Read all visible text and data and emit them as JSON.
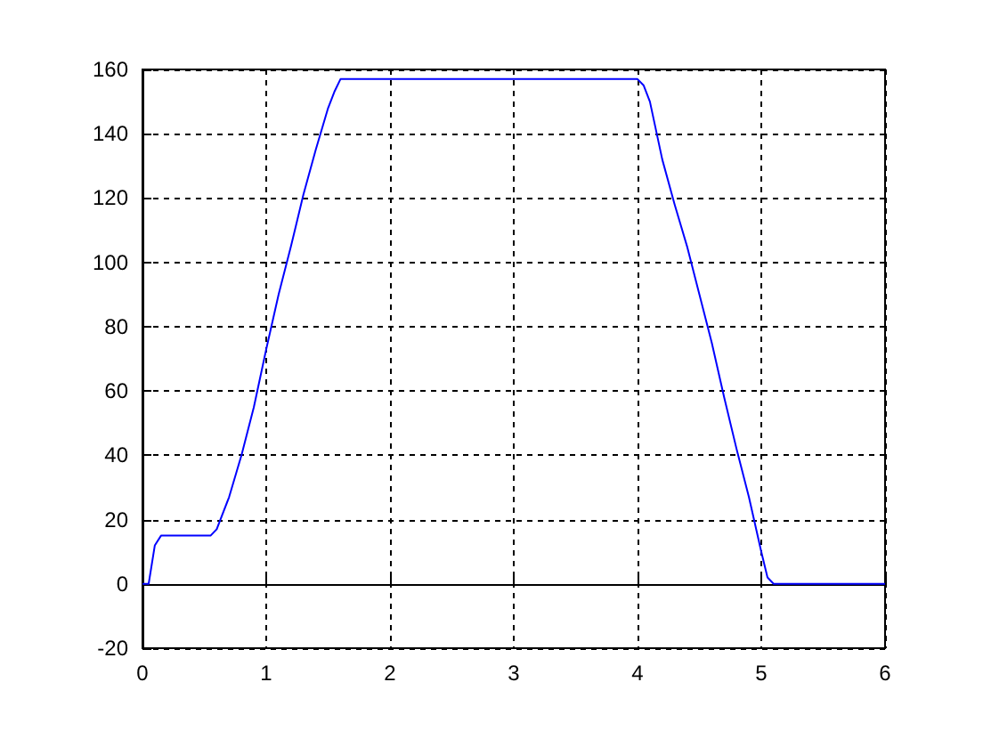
{
  "chart_data": {
    "type": "line",
    "xlim": [
      0,
      6
    ],
    "ylim": [
      -20,
      160
    ],
    "xticks": [
      0,
      1,
      2,
      3,
      4,
      5,
      6
    ],
    "yticks": [
      -20,
      0,
      20,
      40,
      60,
      80,
      100,
      120,
      140,
      160
    ],
    "grid": true,
    "line_style": "solid",
    "marker": "none",
    "series": [
      {
        "color": "#0000ff",
        "x": [
          0,
          0.05,
          0.1,
          0.15,
          0.55,
          0.6,
          0.7,
          0.8,
          0.9,
          1.0,
          1.1,
          1.2,
          1.3,
          1.4,
          1.5,
          1.55,
          1.6,
          4.0,
          4.05,
          4.1,
          4.2,
          4.3,
          4.4,
          4.5,
          4.6,
          4.7,
          4.8,
          4.9,
          5.0,
          5.05,
          5.1,
          6
        ],
        "values": [
          0,
          0,
          12,
          15,
          15,
          17,
          27,
          40,
          55,
          73,
          90,
          105,
          121,
          135,
          148,
          153,
          157,
          157,
          155,
          150,
          132,
          118,
          105,
          90,
          75,
          58,
          42,
          27,
          10,
          2,
          0,
          0
        ]
      }
    ]
  }
}
